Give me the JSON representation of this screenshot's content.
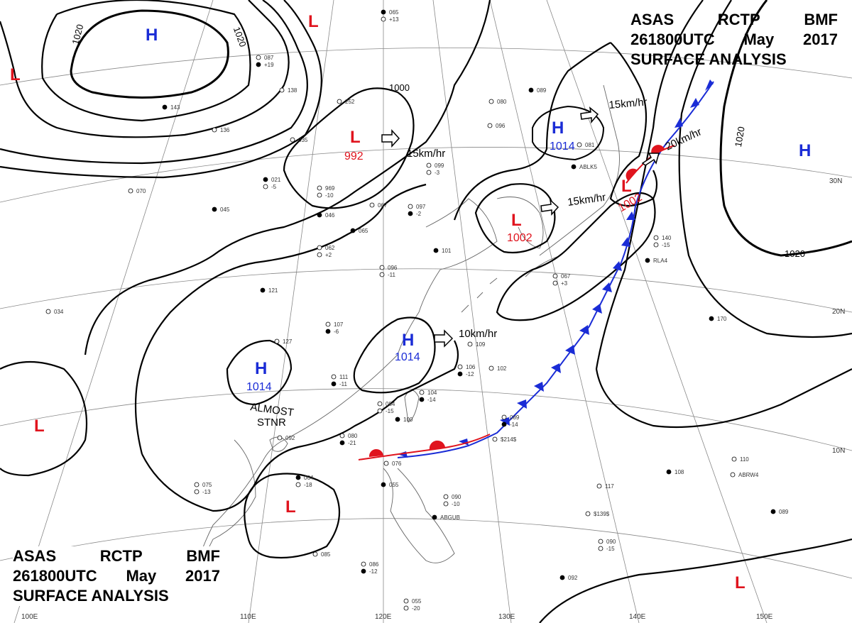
{
  "title": {
    "line1_words": [
      "ASAS",
      "RCTP",
      "BMF"
    ],
    "line2_words": [
      "261800UTC",
      "May",
      "2017"
    ],
    "line3": "SURFACE ANALYSIS"
  },
  "colors": {
    "high": "#1a2cd6",
    "low": "#e0141e",
    "isobar": "#000000",
    "coast": "#666666",
    "grid": "#888888",
    "cold_front": "#1a2cd6",
    "warm_front": "#e0141e"
  },
  "pressure_systems": [
    {
      "id": "H-mongolia",
      "type": "H"
    },
    {
      "id": "L-nw-edge",
      "type": "L"
    },
    {
      "id": "L-north",
      "type": "L"
    },
    {
      "id": "L-manchuria",
      "type": "L",
      "pressure": "992"
    },
    {
      "id": "H-sea-of-okhotsk",
      "type": "H",
      "pressure": "1014"
    },
    {
      "id": "L-korea",
      "type": "L",
      "pressure": "1002"
    },
    {
      "id": "L-japan",
      "type": "L",
      "pressure": "1002"
    },
    {
      "id": "H-pacific",
      "type": "H"
    },
    {
      "id": "H-east-china",
      "type": "H",
      "pressure": "1014"
    },
    {
      "id": "H-south-china",
      "type": "H",
      "pressure": "1014"
    },
    {
      "id": "L-bay-of-bengal",
      "type": "L"
    },
    {
      "id": "L-south-china-sea",
      "type": "L"
    },
    {
      "id": "L-west-pacific",
      "type": "L"
    }
  ],
  "isobar_labels": [
    "1020",
    "1020",
    "1000",
    "1020",
    "1020"
  ],
  "motion_vectors": [
    {
      "id": "mv-manchuria",
      "label": "15km/hr"
    },
    {
      "id": "mv-okhotsk",
      "label": "15km/hr"
    },
    {
      "id": "mv-japan",
      "label": "20km/hr"
    },
    {
      "id": "mv-korea",
      "label": "15km/hr"
    },
    {
      "id": "mv-east-china",
      "label": "10km/hr"
    }
  ],
  "notes": {
    "almost": "ALMOST",
    "stnr": "STNR"
  },
  "lat_labels": [
    "30N",
    "20N",
    "10N"
  ],
  "lon_labels": [
    "100E",
    "110E",
    "120E",
    "130E",
    "140E",
    "150E"
  ],
  "station_samples": [
    {
      "id": "s1",
      "text": "065"
    },
    {
      "id": "s2",
      "text": "+13"
    },
    {
      "id": "s3",
      "text": "087"
    },
    {
      "id": "s4",
      "text": "+19"
    },
    {
      "id": "s5",
      "text": "138"
    },
    {
      "id": "s6",
      "text": "252"
    },
    {
      "id": "s7",
      "text": "143"
    },
    {
      "id": "s8",
      "text": "136"
    },
    {
      "id": "s9",
      "text": "035"
    },
    {
      "id": "s10",
      "text": "021"
    },
    {
      "id": "s11",
      "text": "-5"
    },
    {
      "id": "s12",
      "text": "070"
    },
    {
      "id": "s13",
      "text": "045"
    },
    {
      "id": "s14",
      "text": "969"
    },
    {
      "id": "s15",
      "text": "-10"
    },
    {
      "id": "s16",
      "text": "046"
    },
    {
      "id": "s17",
      "text": "062"
    },
    {
      "id": "s18",
      "text": "+2"
    },
    {
      "id": "s19",
      "text": "065"
    },
    {
      "id": "s20",
      "text": "067"
    },
    {
      "id": "s21",
      "text": "097"
    },
    {
      "id": "s22",
      "text": "-2"
    },
    {
      "id": "s23",
      "text": "099"
    },
    {
      "id": "s24",
      "text": "-3"
    },
    {
      "id": "s25",
      "text": "101"
    },
    {
      "id": "s26",
      "text": "096"
    },
    {
      "id": "s27",
      "text": "-11"
    },
    {
      "id": "s28",
      "text": "121"
    },
    {
      "id": "s29",
      "text": "034"
    },
    {
      "id": "s30",
      "text": "107"
    },
    {
      "id": "s31",
      "text": "-6"
    },
    {
      "id": "s32",
      "text": "127"
    },
    {
      "id": "s33",
      "text": "111"
    },
    {
      "id": "s34",
      "text": "-11"
    },
    {
      "id": "s35",
      "text": "109"
    },
    {
      "id": "s36",
      "text": "106"
    },
    {
      "id": "s37",
      "text": "-12"
    },
    {
      "id": "s38",
      "text": "102"
    },
    {
      "id": "s39",
      "text": "104"
    },
    {
      "id": "s40",
      "text": "-14"
    },
    {
      "id": "s41",
      "text": "084"
    },
    {
      "id": "s42",
      "text": "-15"
    },
    {
      "id": "s43",
      "text": "100"
    },
    {
      "id": "s44",
      "text": "092"
    },
    {
      "id": "s45",
      "text": "080"
    },
    {
      "id": "s46",
      "text": "-21"
    },
    {
      "id": "s47",
      "text": "075"
    },
    {
      "id": "s48",
      "text": "-13"
    },
    {
      "id": "s49",
      "text": "064"
    },
    {
      "id": "s50",
      "text": "-18"
    },
    {
      "id": "s51",
      "text": "089"
    },
    {
      "id": "s52",
      "text": "-14"
    },
    {
      "id": "s53",
      "text": "$214$"
    },
    {
      "id": "s54",
      "text": "076"
    },
    {
      "id": "s55",
      "text": "055"
    },
    {
      "id": "s56",
      "text": "090"
    },
    {
      "id": "s57",
      "text": "-10"
    },
    {
      "id": "s58",
      "text": "ABGUB"
    },
    {
      "id": "s59",
      "text": "$139$"
    },
    {
      "id": "s60",
      "text": "117"
    },
    {
      "id": "s61",
      "text": "108"
    },
    {
      "id": "s62",
      "text": "110"
    },
    {
      "id": "s63",
      "text": "ABRW4"
    },
    {
      "id": "s64",
      "text": "089"
    },
    {
      "id": "s65",
      "text": "090"
    },
    {
      "id": "s66",
      "text": "-15"
    },
    {
      "id": "s67",
      "text": "092"
    },
    {
      "id": "s68",
      "text": "085"
    },
    {
      "id": "s69",
      "text": "086"
    },
    {
      "id": "s70",
      "text": "-12"
    },
    {
      "id": "s71",
      "text": "055"
    },
    {
      "id": "s72",
      "text": "-20"
    },
    {
      "id": "s73",
      "text": "170"
    },
    {
      "id": "s74",
      "text": "140"
    },
    {
      "id": "s75",
      "text": "-15"
    },
    {
      "id": "s76",
      "text": "RLA4"
    },
    {
      "id": "s77",
      "text": "067"
    },
    {
      "id": "s78",
      "text": "+3"
    },
    {
      "id": "s79",
      "text": "089"
    },
    {
      "id": "s80",
      "text": "080"
    },
    {
      "id": "s81",
      "text": "096"
    },
    {
      "id": "s82",
      "text": "ABLK5"
    },
    {
      "id": "s83",
      "text": "081"
    }
  ]
}
